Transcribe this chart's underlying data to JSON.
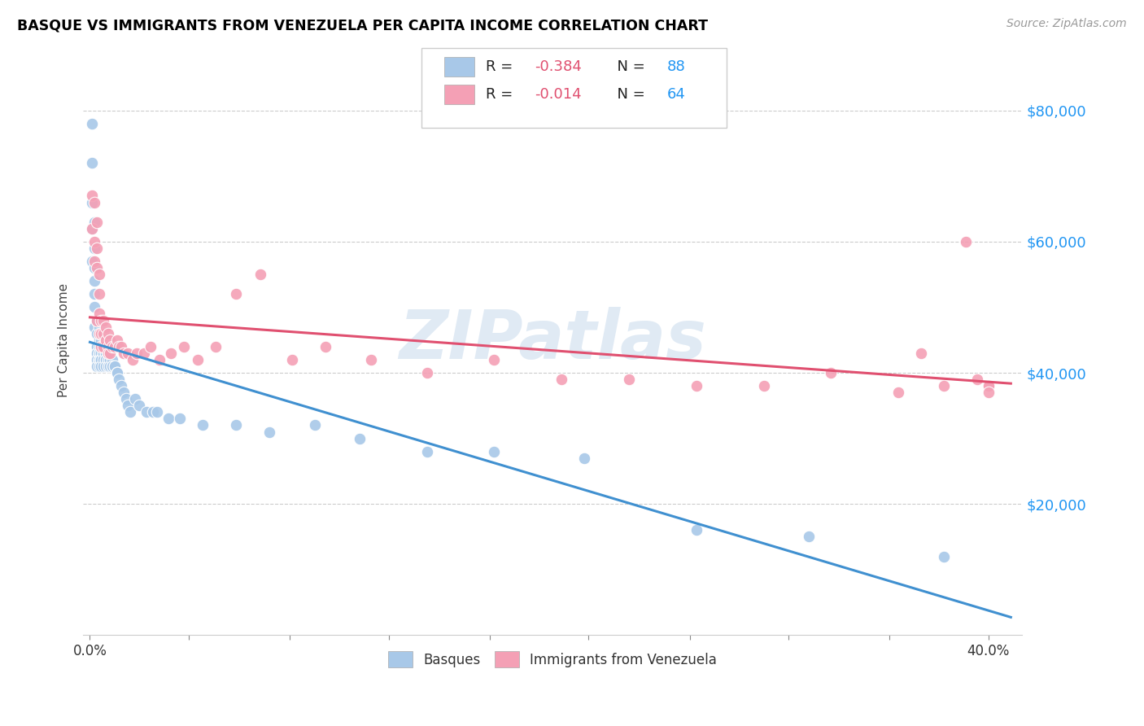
{
  "title": "BASQUE VS IMMIGRANTS FROM VENEZUELA PER CAPITA INCOME CORRELATION CHART",
  "source": "Source: ZipAtlas.com",
  "ylabel": "Per Capita Income",
  "xlabel_ticks": [
    "0.0%",
    "",
    "",
    "",
    "",
    "",
    "",
    "",
    "",
    "40.0%"
  ],
  "xlabel_vals": [
    0.0,
    0.044,
    0.089,
    0.133,
    0.178,
    0.222,
    0.267,
    0.311,
    0.356,
    0.4
  ],
  "ytick_labels": [
    "$20,000",
    "$40,000",
    "$60,000",
    "$80,000"
  ],
  "ytick_vals": [
    20000,
    40000,
    60000,
    80000
  ],
  "ylim": [
    0,
    90000
  ],
  "xlim": [
    -0.003,
    0.415
  ],
  "legend_bottom1": "Basques",
  "legend_bottom2": "Immigrants from Venezuela",
  "color_blue": "#a8c8e8",
  "color_pink": "#f4a0b5",
  "color_blue_line": "#4090d0",
  "color_pink_line": "#e05070",
  "watermark": "ZIPatlas",
  "blue_scatter_x": [
    0.001,
    0.001,
    0.001,
    0.001,
    0.001,
    0.002,
    0.002,
    0.002,
    0.002,
    0.002,
    0.002,
    0.002,
    0.003,
    0.003,
    0.003,
    0.003,
    0.003,
    0.003,
    0.003,
    0.003,
    0.004,
    0.004,
    0.004,
    0.004,
    0.004,
    0.004,
    0.004,
    0.004,
    0.004,
    0.004,
    0.005,
    0.005,
    0.005,
    0.005,
    0.005,
    0.005,
    0.005,
    0.006,
    0.006,
    0.006,
    0.006,
    0.006,
    0.007,
    0.007,
    0.007,
    0.007,
    0.007,
    0.007,
    0.008,
    0.008,
    0.008,
    0.008,
    0.008,
    0.009,
    0.009,
    0.009,
    0.01,
    0.01,
    0.01,
    0.011,
    0.011,
    0.012,
    0.012,
    0.012,
    0.013,
    0.014,
    0.015,
    0.016,
    0.017,
    0.018,
    0.02,
    0.022,
    0.025,
    0.028,
    0.03,
    0.035,
    0.04,
    0.05,
    0.065,
    0.08,
    0.1,
    0.12,
    0.15,
    0.18,
    0.22,
    0.27,
    0.32,
    0.38
  ],
  "blue_scatter_y": [
    78000,
    72000,
    66000,
    62000,
    57000,
    63000,
    59000,
    56000,
    54000,
    52000,
    50000,
    47000,
    48000,
    46000,
    44000,
    44000,
    43000,
    43000,
    42000,
    41000,
    47000,
    45000,
    44000,
    43000,
    43000,
    43000,
    42000,
    42000,
    42000,
    41000,
    45000,
    44000,
    43000,
    42000,
    42000,
    42000,
    41000,
    44000,
    43000,
    43000,
    42000,
    41000,
    44000,
    43000,
    43000,
    42000,
    42000,
    41000,
    43000,
    42000,
    42000,
    41000,
    41000,
    43000,
    42000,
    41000,
    42000,
    41000,
    41000,
    41000,
    41000,
    40000,
    40000,
    40000,
    39000,
    38000,
    37000,
    36000,
    35000,
    34000,
    36000,
    35000,
    34000,
    34000,
    34000,
    33000,
    33000,
    32000,
    32000,
    31000,
    32000,
    30000,
    28000,
    28000,
    27000,
    16000,
    15000,
    12000
  ],
  "pink_scatter_x": [
    0.001,
    0.001,
    0.002,
    0.002,
    0.002,
    0.003,
    0.003,
    0.003,
    0.003,
    0.004,
    0.004,
    0.004,
    0.004,
    0.005,
    0.005,
    0.005,
    0.006,
    0.006,
    0.006,
    0.007,
    0.007,
    0.008,
    0.008,
    0.008,
    0.009,
    0.009,
    0.01,
    0.011,
    0.012,
    0.013,
    0.014,
    0.015,
    0.017,
    0.019,
    0.021,
    0.024,
    0.027,
    0.031,
    0.036,
    0.042,
    0.048,
    0.056,
    0.065,
    0.076,
    0.09,
    0.105,
    0.125,
    0.15,
    0.18,
    0.21,
    0.24,
    0.27,
    0.3,
    0.33,
    0.36,
    0.37,
    0.38,
    0.39,
    0.395,
    0.4,
    0.4,
    0.4,
    0.4,
    0.4
  ],
  "pink_scatter_y": [
    67000,
    62000,
    66000,
    60000,
    57000,
    63000,
    59000,
    56000,
    48000,
    55000,
    52000,
    49000,
    46000,
    48000,
    46000,
    44000,
    48000,
    46000,
    44000,
    47000,
    45000,
    46000,
    44000,
    43000,
    45000,
    43000,
    44000,
    44000,
    45000,
    44000,
    44000,
    43000,
    43000,
    42000,
    43000,
    43000,
    44000,
    42000,
    43000,
    44000,
    42000,
    44000,
    52000,
    55000,
    42000,
    44000,
    42000,
    40000,
    42000,
    39000,
    39000,
    38000,
    38000,
    40000,
    37000,
    43000,
    38000,
    60000,
    39000,
    38000,
    38000,
    38000,
    38000,
    37000
  ]
}
